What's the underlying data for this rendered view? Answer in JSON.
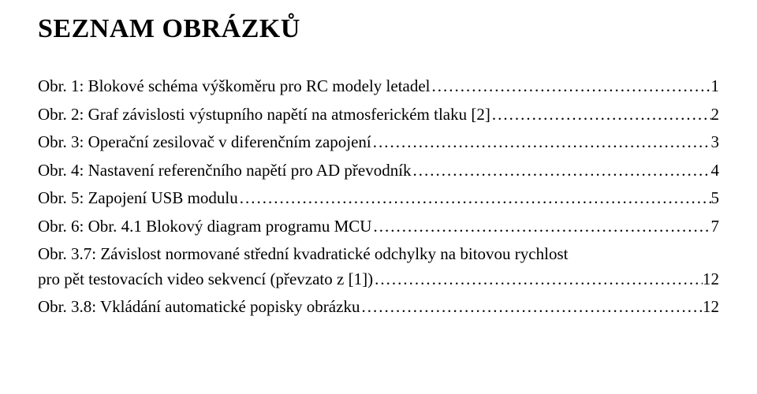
{
  "title": "SEZNAM OBRÁZKŮ",
  "entries": [
    {
      "label": "Obr. 1: Blokové schéma výškoměru pro RC modely letadel",
      "page": "1"
    },
    {
      "label": "Obr. 2: Graf závislosti výstupního napětí na atmosferickém tlaku [2]",
      "page": "2"
    },
    {
      "label": "Obr. 3: Operační zesilovač v diferenčním zapojení",
      "page": "3"
    },
    {
      "label": "Obr. 4: Nastavení referenčního napětí pro AD převodník",
      "page": "4"
    },
    {
      "label": "Obr. 5: Zapojení USB modulu",
      "page": "5"
    },
    {
      "label": "Obr. 6: Obr. 4.1 Blokový diagram programu MCU",
      "page": "7"
    },
    {
      "label_line1": "Obr. 3.7: Závislost normované střední kvadratické odchylky na bitovou rychlost",
      "label_line2": "pro pět testovacích video sekvencí (převzato z [1])",
      "page": "12"
    },
    {
      "label": "Obr. 3.8: Vkládání automatické popisky obrázku",
      "page": "12"
    }
  ]
}
